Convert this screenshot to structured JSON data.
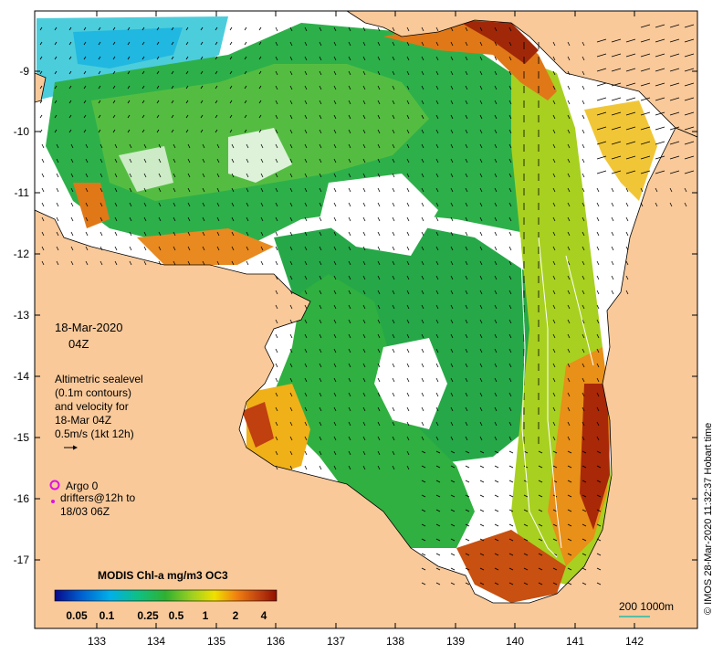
{
  "map": {
    "x_axis": {
      "ticks": [
        "133",
        "134",
        "135",
        "136",
        "137",
        "138",
        "139",
        "140",
        "141",
        "142"
      ]
    },
    "y_axis": {
      "ticks": [
        "-9",
        "-10",
        "-11",
        "-12",
        "-13",
        "-14",
        "-15",
        "-16",
        "-17"
      ]
    },
    "lon_range": [
      132.1,
      143.0
    ],
    "lat_range": [
      -17.8,
      -8.0
    ],
    "colors": {
      "land": "#f9c99a",
      "sea_nodata": "#ffffff",
      "frame": "#000000",
      "vector": "#000000"
    }
  },
  "annotations": {
    "date": "18-Mar-2020",
    "time": "04Z",
    "sealevel_lines": [
      "Altimetric sealevel",
      "(0.1m contours)",
      "and velocity for",
      "18-Mar 04Z",
      "0.5m/s (1kt 12h)"
    ],
    "argo": "Argo 0",
    "drifters_lines": [
      "drifters@12h to",
      "18/03 06Z"
    ]
  },
  "credit": "© IMOS 28-Mar-2020 11:32:37 Hobart time",
  "colorbar": {
    "title": "MODIS Chl-a mg/m3 OC3",
    "ticks": [
      "0.05",
      "0.1",
      "0.25",
      "0.5",
      "1",
      "2",
      "4"
    ],
    "colors": [
      "#08088a",
      "#0060d0",
      "#00b0e8",
      "#10c080",
      "#30b030",
      "#a0d020",
      "#f0e000",
      "#f08010",
      "#c04010",
      "#901000"
    ]
  },
  "scale_bar": {
    "label": "200  1000m",
    "color": "#22bbaa"
  }
}
